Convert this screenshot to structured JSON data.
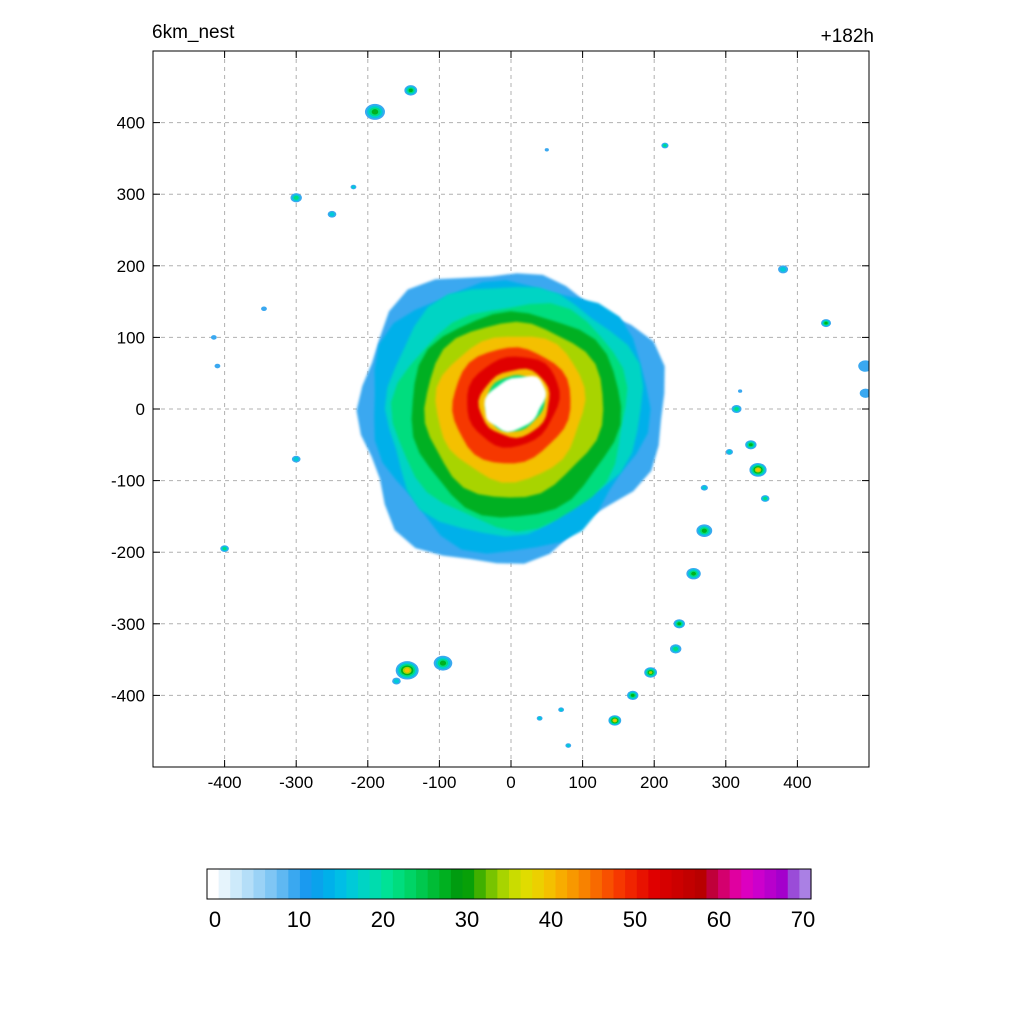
{
  "chart_data": {
    "type": "heatmap",
    "title_left": "6km_nest",
    "title_right": "+182h",
    "xlabel": "",
    "ylabel": "",
    "xlim": [
      -500,
      500
    ],
    "ylim": [
      -500,
      500
    ],
    "grid": true,
    "x_ticks": [
      -400,
      -300,
      -200,
      -100,
      0,
      100,
      200,
      300,
      400
    ],
    "y_ticks": [
      400,
      300,
      200,
      100,
      0,
      -100,
      -200,
      -300,
      -400
    ],
    "x_tick_labels": [
      "-400",
      "-300",
      "-200",
      "-100",
      "0",
      "100",
      "200",
      "300",
      "400"
    ],
    "y_tick_labels": [
      "400",
      "300",
      "200",
      "100",
      "0",
      "-100",
      "-200",
      "-300",
      "-400"
    ],
    "colorbar": {
      "range": [
        0,
        70
      ],
      "ticks": [
        "0",
        "10",
        "20",
        "30",
        "40",
        "50",
        "60",
        "70"
      ],
      "colors": [
        "#ffffff",
        "#e6f4fc",
        "#cdeafa",
        "#b4def8",
        "#9ad2f6",
        "#7fc6f4",
        "#5fb8f2",
        "#3aa8f0",
        "#1a9af0",
        "#0aa2ec",
        "#00b0ea",
        "#00bee6",
        "#00cad8",
        "#00d4c4",
        "#00dcae",
        "#00e296",
        "#00dd7e",
        "#00d466",
        "#00c84e",
        "#00bc36",
        "#00b020",
        "#009c10",
        "#08a008",
        "#40b000",
        "#78c400",
        "#a8d400",
        "#cadc00",
        "#e0dc00",
        "#ecd000",
        "#f4c000",
        "#f8ac00",
        "#f89800",
        "#f88200",
        "#f86a00",
        "#f85000",
        "#f63800",
        "#f02400",
        "#e81200",
        "#e00000",
        "#d60000",
        "#cc0000",
        "#c20000",
        "#b80000",
        "#c0003a",
        "#d4006e",
        "#e000a0",
        "#dc00c0",
        "#cc00cc",
        "#b800cc",
        "#a400cc",
        "#9a4cd8",
        "#aa80e4"
      ]
    },
    "storm": {
      "center_xy": [
        0,
        0
      ],
      "eye_radius_km": 40,
      "eyewall_peak_dbz": 55,
      "max_extent_km": 210
    },
    "outer_cells": [
      {
        "x": -190,
        "y": 415,
        "r": 14,
        "v": 32
      },
      {
        "x": -140,
        "y": 445,
        "r": 9,
        "v": 30
      },
      {
        "x": -300,
        "y": 295,
        "r": 8,
        "v": 22
      },
      {
        "x": -250,
        "y": 272,
        "r": 6,
        "v": 20
      },
      {
        "x": -220,
        "y": 310,
        "r": 4,
        "v": 18
      },
      {
        "x": -410,
        "y": 60,
        "r": 4,
        "v": 14
      },
      {
        "x": -415,
        "y": 100,
        "r": 4,
        "v": 14
      },
      {
        "x": -345,
        "y": 140,
        "r": 4,
        "v": 12
      },
      {
        "x": -300,
        "y": -70,
        "r": 6,
        "v": 18
      },
      {
        "x": -400,
        "y": -195,
        "r": 6,
        "v": 25
      },
      {
        "x": -145,
        "y": -365,
        "r": 16,
        "v": 42
      },
      {
        "x": -95,
        "y": -355,
        "r": 13,
        "v": 30
      },
      {
        "x": 215,
        "y": 368,
        "r": 5,
        "v": 22
      },
      {
        "x": 50,
        "y": 362,
        "r": 3,
        "v": 12
      },
      {
        "x": 380,
        "y": 195,
        "r": 7,
        "v": 20
      },
      {
        "x": 440,
        "y": 120,
        "r": 7,
        "v": 30
      },
      {
        "x": 315,
        "y": 0,
        "r": 7,
        "v": 22
      },
      {
        "x": 345,
        "y": -85,
        "r": 12,
        "v": 44
      },
      {
        "x": 335,
        "y": -50,
        "r": 8,
        "v": 28
      },
      {
        "x": 305,
        "y": -60,
        "r": 5,
        "v": 20
      },
      {
        "x": 355,
        "y": -125,
        "r": 6,
        "v": 22
      },
      {
        "x": 270,
        "y": -170,
        "r": 11,
        "v": 32
      },
      {
        "x": 255,
        "y": -230,
        "r": 10,
        "v": 30
      },
      {
        "x": 235,
        "y": -300,
        "r": 8,
        "v": 30
      },
      {
        "x": 230,
        "y": -335,
        "r": 8,
        "v": 24
      },
      {
        "x": 195,
        "y": -368,
        "r": 9,
        "v": 36
      },
      {
        "x": 170,
        "y": -400,
        "r": 8,
        "v": 28
      },
      {
        "x": 145,
        "y": -435,
        "r": 9,
        "v": 44
      },
      {
        "x": 70,
        "y": -420,
        "r": 4,
        "v": 16
      },
      {
        "x": 40,
        "y": -432,
        "r": 4,
        "v": 16
      },
      {
        "x": 80,
        "y": -470,
        "r": 4,
        "v": 16
      },
      {
        "x": 495,
        "y": 60,
        "r": 10,
        "v": 14
      },
      {
        "x": 495,
        "y": 22,
        "r": 8,
        "v": 14
      },
      {
        "x": -160,
        "y": -380,
        "r": 6,
        "v": 20
      },
      {
        "x": 270,
        "y": -110,
        "r": 5,
        "v": 18
      },
      {
        "x": 320,
        "y": 25,
        "r": 3,
        "v": 12
      }
    ]
  }
}
